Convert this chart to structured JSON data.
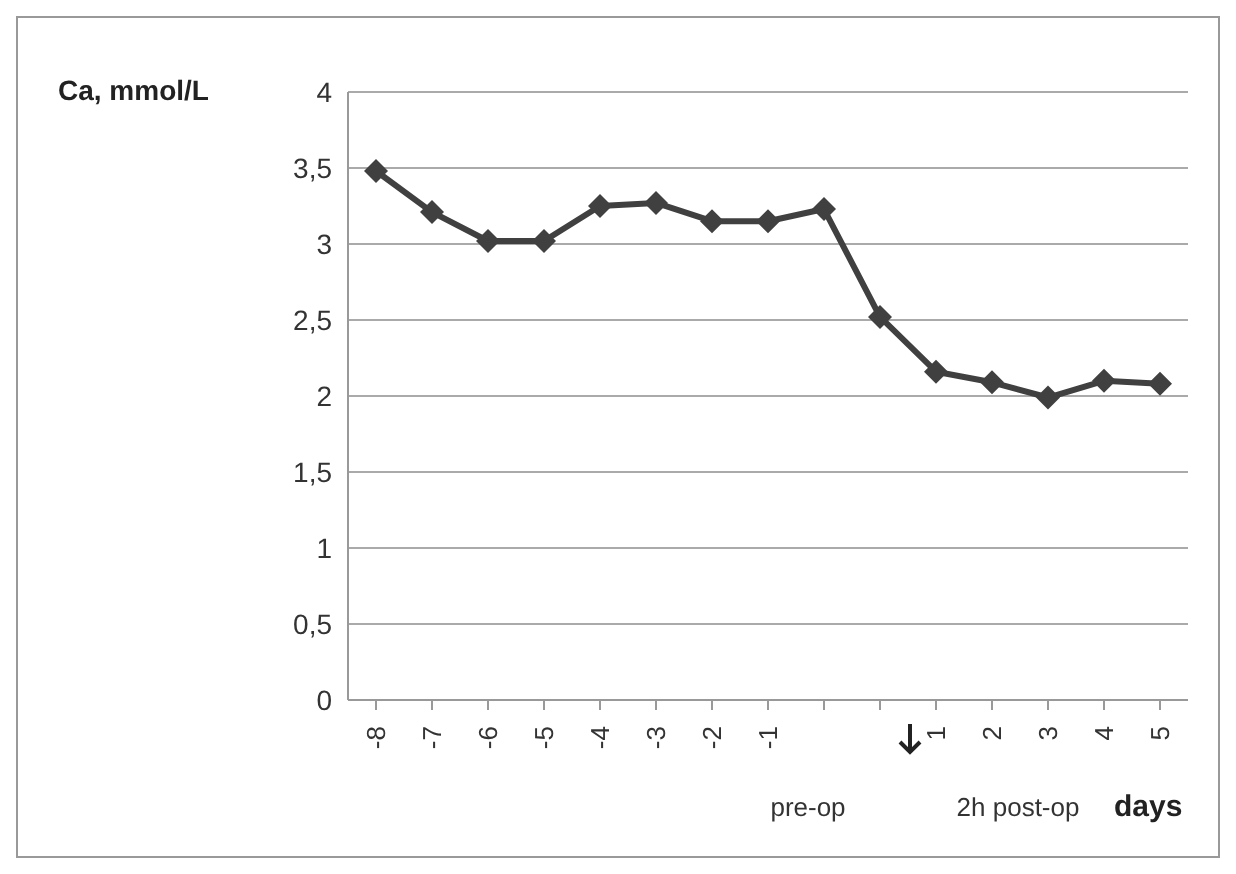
{
  "chart_data": {
    "type": "line",
    "ylabel": "Ca, mmol/L",
    "xlabel": "days",
    "categories": [
      "-8",
      "-7",
      "-6",
      "-5",
      "-4",
      "-3",
      "-2",
      "-1",
      null,
      null,
      "1",
      "2",
      "3",
      "4",
      "5"
    ],
    "series": [
      {
        "color": "#404040",
        "values": [
          3.48,
          3.21,
          3.02,
          3.02,
          3.25,
          3.27,
          3.15,
          3.15,
          3.23,
          2.52,
          2.16,
          2.09,
          1.99,
          2.1,
          2.08
        ]
      }
    ],
    "ylim": [
      0,
      4
    ],
    "yticks": [
      0,
      {
        "value": 0.5,
        "label": "0,5"
      },
      1,
      {
        "value": 1.5,
        "label": "1,5"
      },
      2,
      {
        "value": 2.5,
        "label": "2,5"
      },
      3,
      {
        "value": 3.5,
        "label": "3,5"
      },
      4
    ],
    "grid": "y",
    "legend": false,
    "marker": "diamond",
    "line_style": "solid",
    "annotations": [
      "pre-op",
      "2h post-op"
    ]
  }
}
